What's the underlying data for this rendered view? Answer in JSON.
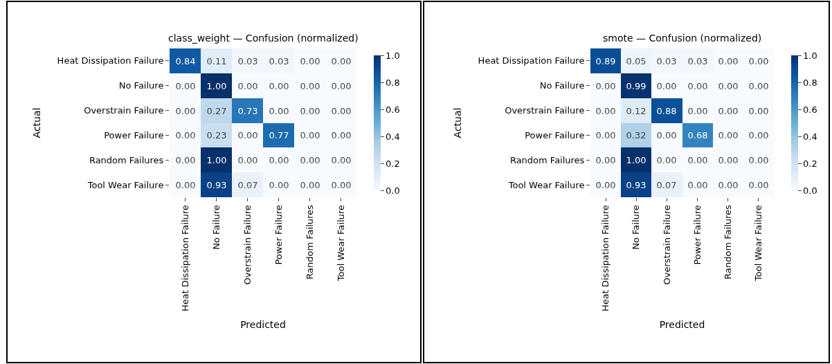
{
  "chart_data": [
    {
      "type": "heatmap",
      "title": "class_weight — Confusion (normalized)",
      "xlabel": "Predicted",
      "ylabel": "Actual",
      "categories": [
        "Heat Dissipation Failure",
        "No Failure",
        "Overstrain Failure",
        "Power Failure",
        "Random Failures",
        "Tool Wear Failure"
      ],
      "y_categories": [
        "Heat Dissipation Failure",
        "No Failure",
        "Overstrain Failure",
        "Power Failure",
        "Random Failures",
        "Tool Wear Failure"
      ],
      "cells": [
        [
          0.84,
          0.11,
          0.03,
          0.03,
          0.0,
          0.0
        ],
        [
          0.0,
          1.0,
          0.0,
          0.0,
          0.0,
          0.0
        ],
        [
          0.0,
          0.27,
          0.73,
          0.0,
          0.0,
          0.0
        ],
        [
          0.0,
          0.23,
          0.0,
          0.77,
          0.0,
          0.0
        ],
        [
          0.0,
          1.0,
          0.0,
          0.0,
          0.0,
          0.0
        ],
        [
          0.0,
          0.93,
          0.07,
          0.0,
          0.0,
          0.0
        ]
      ],
      "cell_labels": [
        [
          "0.84",
          "0.11",
          "0.03",
          "0.03",
          "0.00",
          "0.00"
        ],
        [
          "0.00",
          "1.00",
          "0.00",
          "0.00",
          "0.00",
          "0.00"
        ],
        [
          "0.00",
          "0.27",
          "0.73",
          "0.00",
          "0.00",
          "0.00"
        ],
        [
          "0.00",
          "0.23",
          "0.00",
          "0.77",
          "0.00",
          "0.00"
        ],
        [
          "0.00",
          "1.00",
          "0.00",
          "0.00",
          "0.00",
          "0.00"
        ],
        [
          "0.00",
          "0.93",
          "0.07",
          "0.00",
          "0.00",
          "0.00"
        ]
      ],
      "clim": [
        0,
        1
      ],
      "cticks": [
        {
          "value": 0,
          "label": "0.0"
        },
        {
          "value": 0.2,
          "label": "0.2"
        },
        {
          "value": 0.4,
          "label": "0.4"
        },
        {
          "value": 0.6,
          "label": "0.6"
        },
        {
          "value": 0.8,
          "label": "0.8"
        },
        {
          "value": 1,
          "label": "1.0"
        }
      ]
    },
    {
      "type": "heatmap",
      "title": "smote — Confusion (normalized)",
      "xlabel": "Predicted",
      "ylabel": "Actual",
      "categories": [
        "Heat Dissipation Failure",
        "No Failure",
        "Overstrain Failure",
        "Power Failure",
        "Random Failures",
        "Tool Wear Failure"
      ],
      "y_categories": [
        "Heat Dissipation Failure",
        "No Failure",
        "Overstrain Failure",
        "Power Failure",
        "Random Failures",
        "Tool Wear Failure"
      ],
      "cells": [
        [
          0.89,
          0.05,
          0.03,
          0.03,
          0.0,
          0.0
        ],
        [
          0.0,
          0.99,
          0.0,
          0.0,
          0.0,
          0.0
        ],
        [
          0.0,
          0.12,
          0.88,
          0.0,
          0.0,
          0.0
        ],
        [
          0.0,
          0.32,
          0.0,
          0.68,
          0.0,
          0.0
        ],
        [
          0.0,
          1.0,
          0.0,
          0.0,
          0.0,
          0.0
        ],
        [
          0.0,
          0.93,
          0.07,
          0.0,
          0.0,
          0.0
        ]
      ],
      "cell_labels": [
        [
          "0.89",
          "0.05",
          "0.03",
          "0.03",
          "0.00",
          "0.00"
        ],
        [
          "0.00",
          "0.99",
          "0.00",
          "0.00",
          "0.00",
          "0.00"
        ],
        [
          "0.00",
          "0.12",
          "0.88",
          "0.00",
          "0.00",
          "0.00"
        ],
        [
          "0.00",
          "0.32",
          "0.00",
          "0.68",
          "0.00",
          "0.00"
        ],
        [
          "0.00",
          "1.00",
          "0.00",
          "0.00",
          "0.00",
          "0.00"
        ],
        [
          "0.00",
          "0.93",
          "0.07",
          "0.00",
          "0.00",
          "0.00"
        ]
      ],
      "clim": [
        0,
        1
      ],
      "cticks": [
        {
          "value": 0,
          "label": "0.0"
        },
        {
          "value": 0.2,
          "label": "0.2"
        },
        {
          "value": 0.4,
          "label": "0.4"
        },
        {
          "value": 0.6,
          "label": "0.6"
        },
        {
          "value": 0.8,
          "label": "0.8"
        },
        {
          "value": 1,
          "label": "1.0"
        }
      ]
    }
  ]
}
